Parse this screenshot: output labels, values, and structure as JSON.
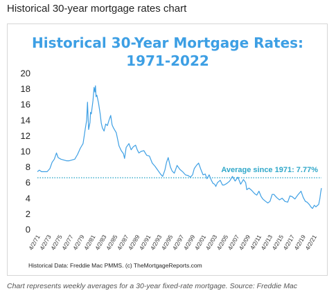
{
  "page": {
    "heading": "Historical 30-year mortgage rates chart",
    "caption": "Chart represents weekly averages for a 30-year fixed-rate mortgage. Source: Freddie Mac"
  },
  "colors": {
    "title": "#3d9fe4",
    "line": "#3d9fe4",
    "average_line": "#2fa7c9"
  },
  "chart_data": {
    "type": "line",
    "title_lines": [
      "Historical 30-Year Mortgage Rates:",
      "1971-2022"
    ],
    "xlabel": "",
    "ylabel": "",
    "ylim": [
      0,
      20
    ],
    "xlim": [
      1971.25,
      2022.6
    ],
    "y_ticks": [
      "0",
      "2",
      "4",
      "6",
      "8",
      "10",
      "12",
      "14",
      "16",
      "18",
      "20"
    ],
    "x_ticks": [
      "4/2/71",
      "4/2/73",
      "4/2/75",
      "4/2/77",
      "4/2/79",
      "4/2/81",
      "4/2/83",
      "4/2/85",
      "4/2/87",
      "4/2/89",
      "4/2/91",
      "4/2/93",
      "4/2/95",
      "4/2/97",
      "4/2/99",
      "4/2/01",
      "4/2/03",
      "4/2/05",
      "4/2/07",
      "4/2/09",
      "4/2/11",
      "4/2/13",
      "4/2/15",
      "4/2/17",
      "4/2/19",
      "4/2/21"
    ],
    "grid": false,
    "average": {
      "value": 7.77,
      "label": "Average since 1971: 7.77%"
    },
    "source_note": "Historical Data: Freddie Mac PMMS. (c) TheMortgageReports.com",
    "series": [
      {
        "x": [
          1971.25,
          1971.6,
          1972.0,
          1972.5,
          1973.0,
          1973.5,
          1973.9,
          1974.3,
          1974.7,
          1975.0,
          1975.5,
          1976.0,
          1976.5,
          1977.0,
          1977.5,
          1978.0,
          1978.5,
          1979.0,
          1979.5,
          1979.9,
          1980.15,
          1980.3,
          1980.5,
          1980.75,
          1980.85,
          1981.0,
          1981.3,
          1981.5,
          1981.65,
          1981.75,
          1981.85,
          1982.0,
          1982.3,
          1982.6,
          1982.8,
          1983.0,
          1983.3,
          1983.6,
          1983.9,
          1984.2,
          1984.5,
          1984.75,
          1985.0,
          1985.5,
          1986.0,
          1986.4,
          1986.8,
          1987.0,
          1987.3,
          1987.8,
          1988.2,
          1988.6,
          1989.0,
          1989.3,
          1989.6,
          1990.0,
          1990.5,
          1991.0,
          1991.5,
          1992.0,
          1992.5,
          1993.0,
          1993.5,
          1993.9,
          1994.3,
          1994.6,
          1994.9,
          1995.3,
          1995.6,
          1996.0,
          1996.5,
          1997.0,
          1997.5,
          1998.0,
          1998.5,
          1998.9,
          1999.3,
          1999.6,
          2000.0,
          2000.4,
          2000.8,
          2001.2,
          2001.6,
          2001.9,
          2002.3,
          2002.7,
          2003.0,
          2003.3,
          2003.5,
          2003.8,
          2004.3,
          2004.7,
          2005.0,
          2005.5,
          2006.0,
          2006.5,
          2007.0,
          2007.5,
          2008.0,
          2008.5,
          2008.9,
          2009.1,
          2009.5,
          2010.0,
          2010.5,
          2010.9,
          2011.3,
          2011.7,
          2012.0,
          2012.5,
          2012.9,
          2013.3,
          2013.7,
          2014.0,
          2014.5,
          2015.0,
          2015.5,
          2016.0,
          2016.5,
          2016.9,
          2017.3,
          2017.8,
          2018.3,
          2018.9,
          2019.3,
          2019.7,
          2020.0,
          2020.4,
          2020.8,
          2021.0,
          2021.3,
          2021.6,
          2021.9,
          2022.1,
          2022.3,
          2022.45,
          2022.6
        ],
        "values": [
          7.4,
          7.6,
          7.4,
          7.4,
          7.4,
          7.8,
          8.6,
          9.0,
          9.8,
          9.2,
          9.0,
          8.9,
          8.8,
          8.8,
          8.9,
          9.0,
          9.6,
          10.4,
          11.0,
          12.9,
          14.0,
          16.3,
          12.8,
          13.7,
          15.0,
          14.8,
          16.5,
          18.2,
          17.6,
          18.4,
          17.0,
          17.2,
          16.2,
          14.8,
          13.6,
          13.0,
          12.6,
          13.5,
          13.3,
          14.0,
          14.6,
          13.4,
          13.0,
          12.4,
          10.7,
          10.1,
          9.7,
          9.1,
          10.5,
          11.0,
          10.2,
          10.6,
          10.8,
          10.2,
          9.8,
          10.0,
          10.1,
          9.5,
          9.4,
          8.5,
          8.1,
          7.6,
          7.1,
          6.8,
          7.6,
          8.6,
          9.2,
          8.0,
          7.5,
          7.2,
          8.2,
          7.7,
          7.4,
          7.0,
          6.9,
          6.7,
          7.0,
          7.8,
          8.2,
          8.5,
          7.7,
          7.0,
          7.1,
          6.5,
          7.0,
          6.3,
          5.9,
          5.8,
          5.5,
          6.0,
          6.3,
          5.7,
          5.7,
          5.9,
          6.2,
          6.8,
          6.2,
          6.7,
          5.8,
          6.4,
          6.0,
          5.1,
          5.3,
          5.0,
          4.6,
          4.4,
          4.9,
          4.2,
          3.9,
          3.6,
          3.4,
          3.6,
          4.5,
          4.5,
          4.1,
          3.8,
          4.0,
          3.6,
          3.5,
          4.3,
          4.2,
          3.9,
          4.4,
          4.9,
          4.1,
          3.6,
          3.5,
          3.2,
          2.8,
          2.7,
          3.1,
          2.9,
          3.1,
          3.2,
          3.9,
          4.7,
          5.3
        ]
      }
    ]
  }
}
